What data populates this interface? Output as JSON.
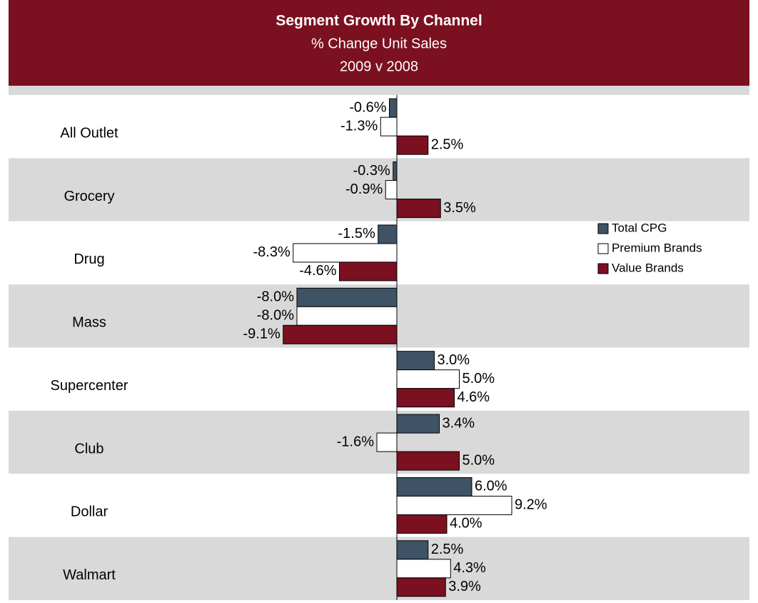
{
  "chart_data": {
    "type": "bar",
    "orientation": "horizontal",
    "title": "Segment Growth By Channel",
    "subtitle": [
      "% Change Unit Sales",
      "2009 v 2008"
    ],
    "categories": [
      "All Outlet",
      "Grocery",
      "Drug",
      "Mass",
      "Supercenter",
      "Club",
      "Dollar",
      "Walmart"
    ],
    "series": [
      {
        "name": "Total CPG",
        "color": "#3f5366",
        "values": [
          -0.6,
          -0.3,
          -1.5,
          -8.0,
          3.0,
          3.4,
          6.0,
          2.5
        ],
        "value_labels": [
          "-0.6%",
          "-0.3%",
          "-1.5%",
          "-8.0%",
          "3.0%",
          "3.4%",
          "6.0%",
          "2.5%"
        ]
      },
      {
        "name": "Premium Brands",
        "color": "#ffffff",
        "values": [
          -1.3,
          -0.9,
          -8.3,
          -8.0,
          5.0,
          -1.6,
          9.2,
          4.3
        ],
        "value_labels": [
          "-1.3%",
          "-0.9%",
          "-8.3%",
          "-8.0%",
          "5.0%",
          "-1.6%",
          "9.2%",
          "4.3%"
        ]
      },
      {
        "name": "Value Brands",
        "color": "#7b1020",
        "values": [
          2.5,
          3.5,
          -4.6,
          -9.1,
          4.6,
          5.0,
          4.0,
          3.9
        ],
        "value_labels": [
          "2.5%",
          "3.5%",
          "-4.6%",
          "-9.1%",
          "4.6%",
          "5.0%",
          "4.0%",
          "3.9%"
        ]
      }
    ],
    "xlim": [
      -10,
      10
    ],
    "header_color": "#7b1020",
    "band_color": "#d9d9d9"
  }
}
